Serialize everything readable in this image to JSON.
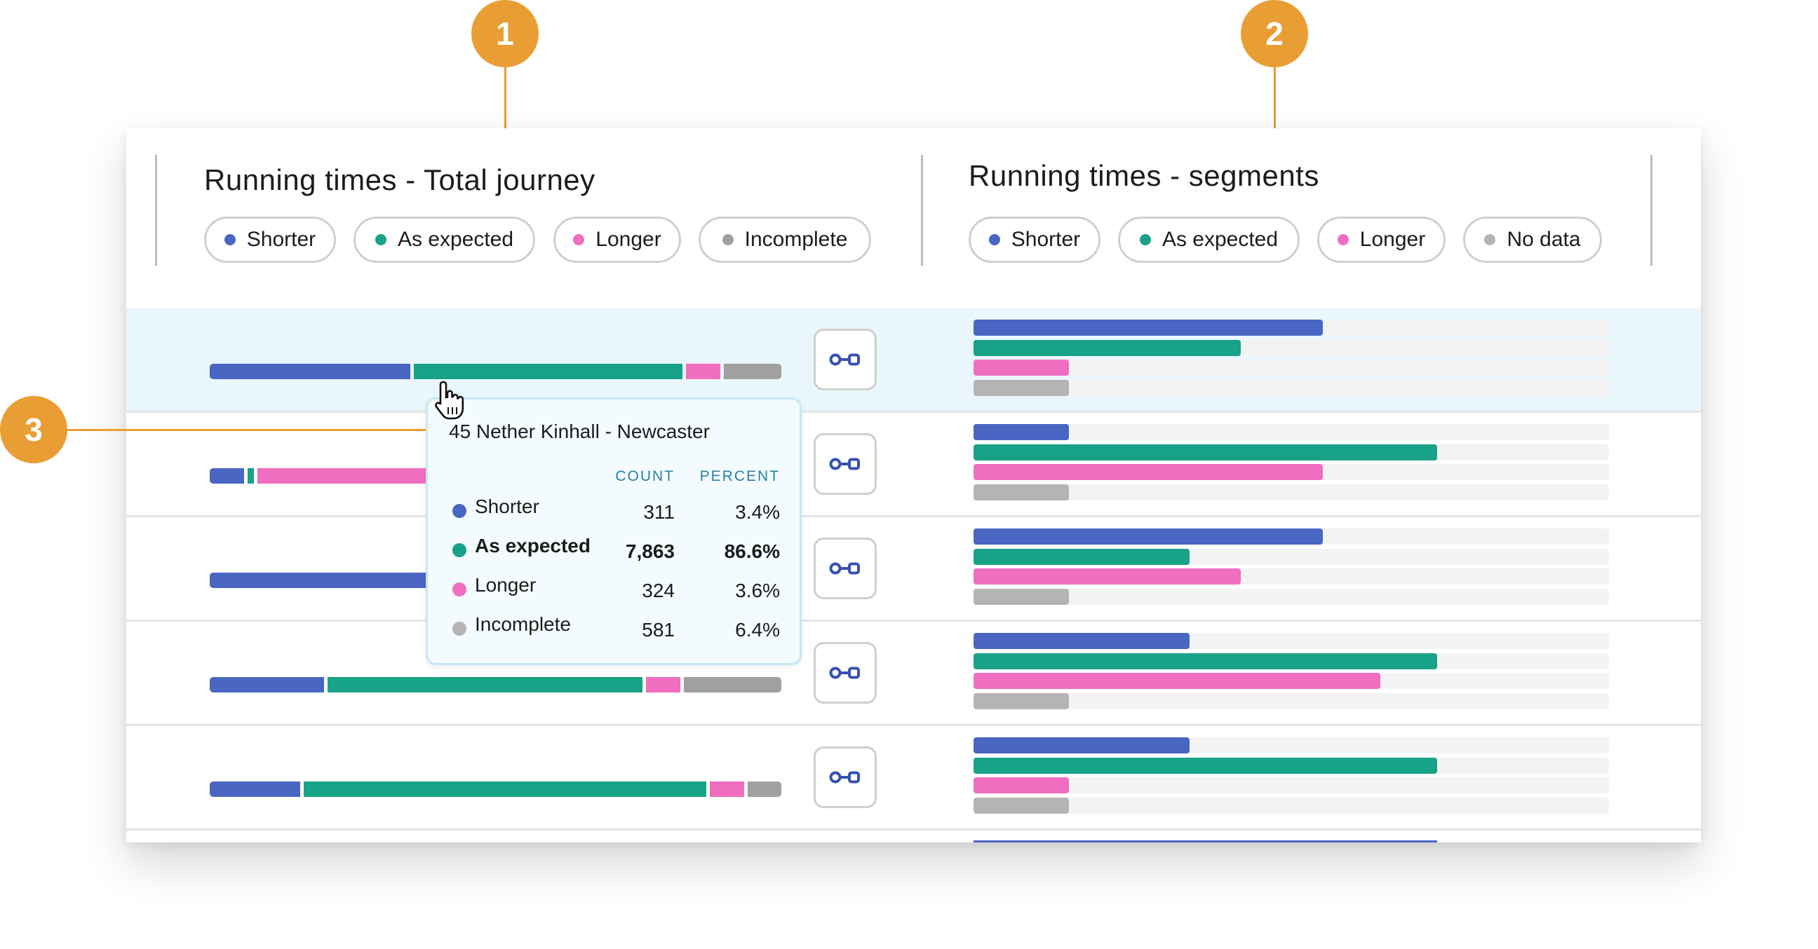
{
  "colors": {
    "shorter": "#4866c2",
    "as_expected": "#18a287",
    "longer": "#f06ec0",
    "incomplete": "#a0a0a0",
    "no_data": "#b4b4b4",
    "accent": "#e99e35"
  },
  "callouts": [
    "1",
    "2",
    "3"
  ],
  "total_journey": {
    "title": "Running times - Total journey",
    "legend": [
      {
        "label": "Shorter",
        "color": "#4866c2"
      },
      {
        "label": "As expected",
        "color": "#18a287"
      },
      {
        "label": "Longer",
        "color": "#f06ec0"
      },
      {
        "label": "Incomplete",
        "color": "#a0a0a0"
      }
    ]
  },
  "segments": {
    "title": "Running times - segments",
    "legend": [
      {
        "label": "Shorter",
        "color": "#4866c2"
      },
      {
        "label": "As expected",
        "color": "#18a287"
      },
      {
        "label": "Longer",
        "color": "#f06ec0"
      },
      {
        "label": "No data",
        "color": "#b4b4b4"
      }
    ]
  },
  "rows": [
    {
      "highlighted": true,
      "total_pct": [
        35,
        47,
        6,
        10
      ],
      "segment_fractions": [
        0.55,
        0.42,
        0.15,
        0.15
      ],
      "link_icon": "link-icon"
    },
    {
      "highlighted": false,
      "total_pct": [
        6,
        1,
        60,
        30
      ],
      "segment_fractions": [
        0.15,
        0.73,
        0.55,
        0.15
      ],
      "link_icon": "link-icon"
    },
    {
      "highlighted": false,
      "total_pct": [
        40,
        35,
        8,
        14
      ],
      "segment_fractions": [
        0.55,
        0.34,
        0.42,
        0.15
      ],
      "link_icon": "link-icon"
    },
    {
      "highlighted": false,
      "total_pct": [
        20,
        55,
        6,
        17
      ],
      "segment_fractions": [
        0.34,
        0.73,
        0.64,
        0.15
      ],
      "link_icon": "link-icon"
    },
    {
      "highlighted": false,
      "total_pct": [
        16,
        71,
        6,
        6
      ],
      "segment_fractions": [
        0.34,
        0.73,
        0.15,
        0.15
      ],
      "link_icon": "link-icon"
    }
  ],
  "tooltip": {
    "title": "45 Nether Kinhall - Newcaster",
    "col_count": "COUNT",
    "col_percent": "PERCENT",
    "rows": [
      {
        "label": "Shorter",
        "count": "311",
        "percent": "3.4%",
        "color": "#4866c2"
      },
      {
        "label": "As expected",
        "count": "7,863",
        "percent": "86.6%",
        "color": "#18a287",
        "bold": true
      },
      {
        "label": "Longer",
        "count": "324",
        "percent": "3.6%",
        "color": "#f06ec0"
      },
      {
        "label": "Incomplete",
        "count": "581",
        "percent": "6.4%",
        "color": "#b4b4b4"
      }
    ]
  }
}
